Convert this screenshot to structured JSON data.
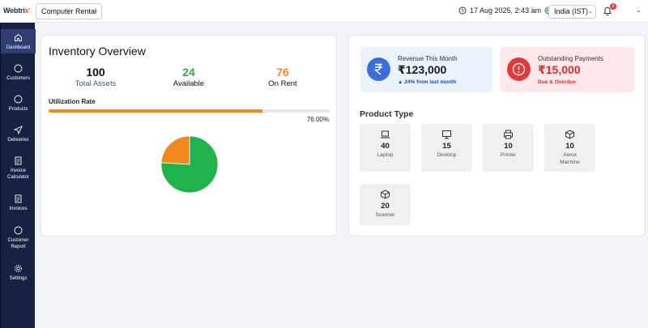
{
  "app": {
    "logo_text": "Webtrix",
    "category_select": "Computer Rental",
    "datetime": "17 Aug 2025, 2:43 am",
    "timezone": "India (IST)",
    "notification_count": "8"
  },
  "sidebar": {
    "items": [
      {
        "label": "Dashboard",
        "icon": "home-icon"
      },
      {
        "label": "Customers",
        "icon": "circle-icon"
      },
      {
        "label": "Products",
        "icon": "circle-icon"
      },
      {
        "label": "Deliveries",
        "icon": "send-icon"
      },
      {
        "label": "Invoice Calculator",
        "icon": "document-icon"
      },
      {
        "label": "Invoices",
        "icon": "document-icon"
      },
      {
        "label": "Customer Report",
        "icon": "circle-icon"
      },
      {
        "label": "Settings",
        "icon": "gear-icon"
      }
    ]
  },
  "inventory": {
    "title": "Inventory Overview",
    "total": {
      "value": "100",
      "label": "Total Assets"
    },
    "available": {
      "value": "24",
      "label": "Available"
    },
    "on_rent": {
      "value": "76",
      "label": "On Rent"
    },
    "utilization_label": "Utilization Rate",
    "utilization_pct": "76.00%",
    "utilization_value": 76,
    "pie": {
      "available": 24,
      "on_rent": 76
    }
  },
  "revenue": {
    "label": "Revenue This Month",
    "amount": "₹123,000",
    "change": "24% from last month"
  },
  "payments": {
    "label": "Outstanding Payments",
    "amount": "₹15,000",
    "status": "Due & Overdue"
  },
  "product_type": {
    "title": "Product Type",
    "items": [
      {
        "count": "40",
        "name": "Laptop",
        "icon": "laptop-icon"
      },
      {
        "count": "15",
        "name": "Desktop",
        "icon": "monitor-icon"
      },
      {
        "count": "10",
        "name": "Printer",
        "icon": "printer-icon"
      },
      {
        "count": "10",
        "name": "Xerox Machine",
        "icon": "box-icon"
      },
      {
        "count": "20",
        "name": "Scanner",
        "icon": "box-icon"
      }
    ]
  },
  "colors": {
    "sidebar_bg": "#172141",
    "available": "#22b24c",
    "on_rent": "#f0891f",
    "total": "#1565c0",
    "revenue_circle": "#3b6fd8",
    "payment_circle": "#e23b3b"
  }
}
